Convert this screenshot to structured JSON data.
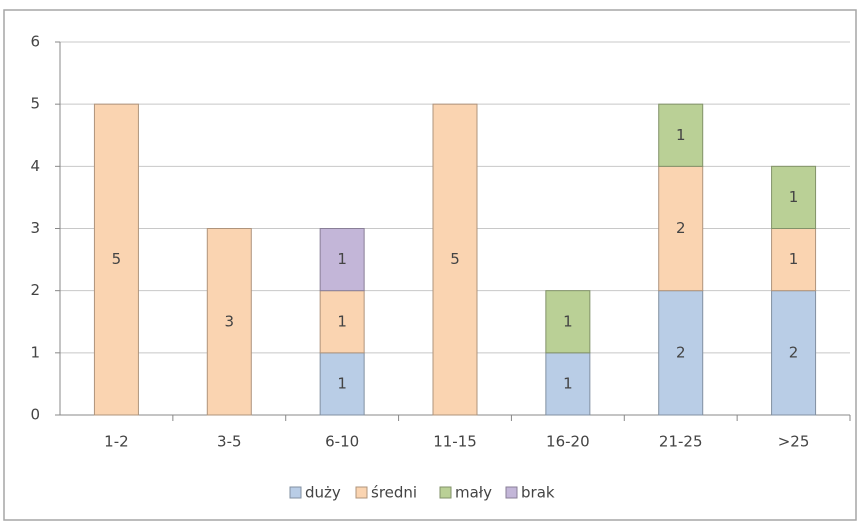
{
  "chart_data": {
    "type": "stacked_bar",
    "categories": [
      "1-2",
      "3-5",
      "6-10",
      "11-15",
      "16-20",
      "21-25",
      ">25"
    ],
    "series": [
      {
        "name": "duży",
        "color": "#b9cde6",
        "values": [
          null,
          null,
          1,
          null,
          1,
          2,
          2
        ]
      },
      {
        "name": "średni",
        "color": "#fad4b1",
        "values": [
          5,
          3,
          1,
          5,
          null,
          2,
          1
        ]
      },
      {
        "name": "mały",
        "color": "#bad096",
        "values": [
          null,
          null,
          null,
          null,
          1,
          1,
          1
        ]
      },
      {
        "name": "brak",
        "color": "#c3b6d8",
        "values": [
          null,
          null,
          1,
          null,
          null,
          null,
          null
        ]
      }
    ],
    "ylim": [
      0,
      6
    ],
    "yticks": [
      0,
      1,
      2,
      3,
      4,
      5,
      6
    ],
    "grid": true,
    "legend": "bottom"
  }
}
